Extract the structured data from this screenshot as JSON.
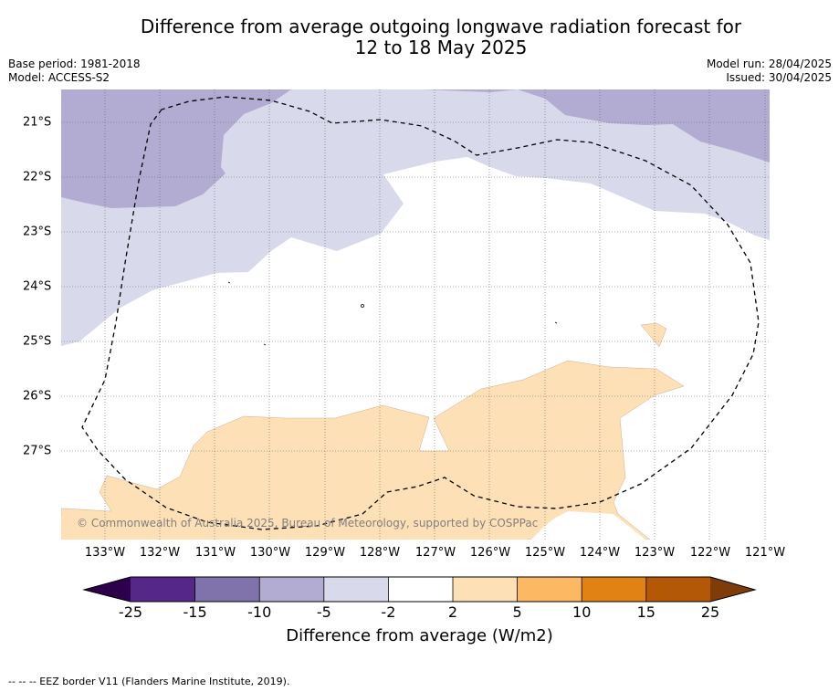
{
  "title_line1": "Difference from average outgoing longwave radiation forecast for",
  "title_line2": "12 to 18 May 2025",
  "base_period": "Base period: 1981-2018",
  "model": "Model: ACCESS-S2",
  "model_run": "Model run: 28/04/2025",
  "issued": "Issued: 30/04/2025",
  "copyright": "© Commonwealth of Australia 2025, Bureau of Meteorology, supported by COSPPac",
  "lon_labels": [
    "133°W",
    "132°W",
    "131°W",
    "130°W",
    "129°W",
    "128°W",
    "127°W",
    "126°W",
    "125°W",
    "124°W",
    "123°W",
    "122°W",
    "121°W"
  ],
  "lat_labels": [
    "21°S",
    "22°S",
    "23°S",
    "24°S",
    "25°S",
    "26°S",
    "27°S"
  ],
  "colorbar": {
    "ticks": [
      "-25",
      "-15",
      "-10",
      "-5",
      "-2",
      "2",
      "5",
      "10",
      "15",
      "25"
    ],
    "colors": {
      "below_-25": "#2d004b",
      "-25_-15": "#542788",
      "-15_-10": "#8073ac",
      "-10_-5": "#b2abd2",
      "-5_-2": "#d8daeb",
      "-2_2": "#ffffff",
      "2_5": "#fee0b6",
      "5_10": "#fdb863",
      "10_15": "#e08214",
      "15_25": "#b35806",
      "above_25": "#7f3b08"
    },
    "label": "Difference from average (W/m2)"
  },
  "footnote": "--  --  -- EEZ border V11 (Flanders Marine Institute, 2019)."
}
